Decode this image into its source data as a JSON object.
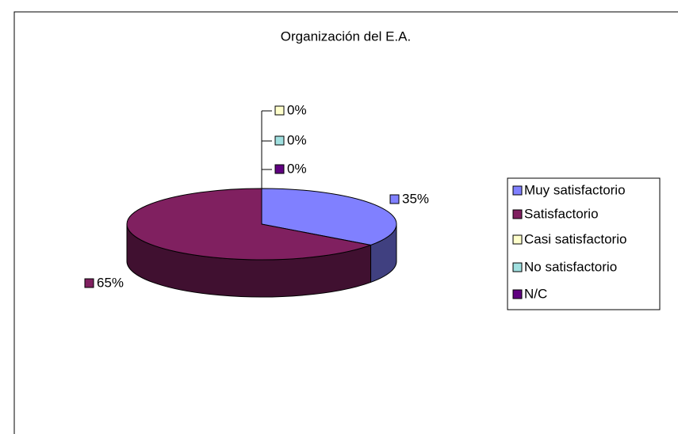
{
  "chart_data": {
    "type": "pie3d",
    "title": "Organización del E.A.",
    "categories": [
      "Muy satisfactorio",
      "Satisfactorio",
      "Casi satisfactorio",
      "No satisfactorio",
      "N/C"
    ],
    "values": [
      35,
      65,
      0,
      0,
      0
    ],
    "value_labels": [
      "35%",
      "65%",
      "0%",
      "0%",
      "0%"
    ],
    "colors": [
      "#8080ff",
      "#802060",
      "#ffffcc",
      "#a0e0e0",
      "#600080"
    ],
    "legend": "right"
  }
}
